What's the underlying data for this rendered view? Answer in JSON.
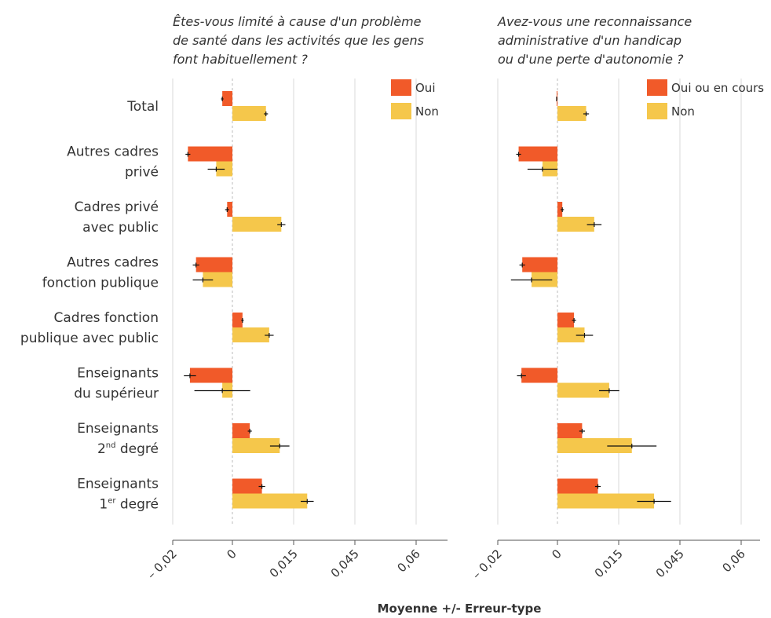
{
  "colors": {
    "oui": "#f15a29",
    "non": "#f5c74b",
    "grid": "#d9d9d9",
    "axis": "#555555",
    "error": "#111111"
  },
  "categories": [
    {
      "lines": [
        {
          "text": "Total"
        }
      ]
    },
    {
      "lines": [
        {
          "text": "Autres cadres"
        },
        {
          "text": "privé"
        }
      ]
    },
    {
      "lines": [
        {
          "text": "Cadres privé"
        },
        {
          "text": "avec public"
        }
      ]
    },
    {
      "lines": [
        {
          "text": "Autres cadres"
        },
        {
          "text": "fonction publique"
        }
      ]
    },
    {
      "lines": [
        {
          "text": "Cadres fonction"
        },
        {
          "text": "publique avec public"
        }
      ]
    },
    {
      "lines": [
        {
          "text": "Enseignants"
        },
        {
          "text": "du supérieur"
        }
      ]
    },
    {
      "lines": [
        {
          "text": "Enseignants"
        },
        {
          "pre": "2",
          "sup": "nd",
          "post": " degré"
        }
      ]
    },
    {
      "lines": [
        {
          "text": "Enseignants"
        },
        {
          "pre": "1",
          "sup": "er",
          "post": " degré"
        }
      ]
    }
  ],
  "xlabel": "Moyenne +/- Erreur-type",
  "chart_data": [
    {
      "type": "bar",
      "orientation": "horizontal",
      "title_lines": [
        "Êtes-vous limité à cause d'un problème",
        "de santé dans les activités que les gens",
        "font habituellement ?"
      ],
      "xlabel": "Moyenne +/- Erreur-type",
      "x_tick_labels": [
        "– 0,02",
        "0",
        "0,015",
        "0,045",
        "0,06"
      ],
      "legend_position": "top-right",
      "grid": true,
      "series": [
        {
          "name": "Oui",
          "values": [
            -0.0025,
            -0.011,
            -0.0013,
            -0.009,
            0.0025,
            -0.0105,
            0.0043,
            0.0073
          ],
          "errors": [
            0.0003,
            0.0006,
            0.0005,
            0.0008,
            0.0003,
            0.0015,
            0.0005,
            0.0008
          ]
        },
        {
          "name": "Non",
          "values": [
            0.0083,
            -0.004,
            0.0121,
            -0.0073,
            0.0091,
            -0.0025,
            0.0117,
            0.0185
          ],
          "errors": [
            0.0005,
            0.0021,
            0.001,
            0.0025,
            0.0011,
            0.0069,
            0.0024,
            0.0016
          ]
        }
      ]
    },
    {
      "type": "bar",
      "orientation": "horizontal",
      "title_lines": [
        "Avez-vous une reconnaissance",
        "administrative d'un handicap",
        "ou d'une perte d'autonomie ?"
      ],
      "xlabel": "Moyenne +/- Erreur-type",
      "x_tick_labels": [
        "– 0,02",
        "0",
        "0,015",
        "0,045",
        "0,06"
      ],
      "legend_position": "top-right",
      "grid": true,
      "series": [
        {
          "name": "Oui ou en cours",
          "values": [
            -0.0002,
            -0.0096,
            0.0012,
            -0.0087,
            0.0041,
            -0.0089,
            0.0061,
            0.01
          ],
          "errors": [
            0.0001,
            0.0006,
            0.0004,
            0.0007,
            0.0005,
            0.0011,
            0.0007,
            0.0007
          ]
        },
        {
          "name": "Non",
          "values": [
            0.0071,
            -0.0037,
            0.0091,
            -0.0064,
            0.0067,
            0.0128,
            0.0184,
            0.0239
          ],
          "errors": [
            0.0007,
            0.0037,
            0.0018,
            0.0051,
            0.0021,
            0.0025,
            0.0061,
            0.0042
          ]
        }
      ]
    }
  ]
}
